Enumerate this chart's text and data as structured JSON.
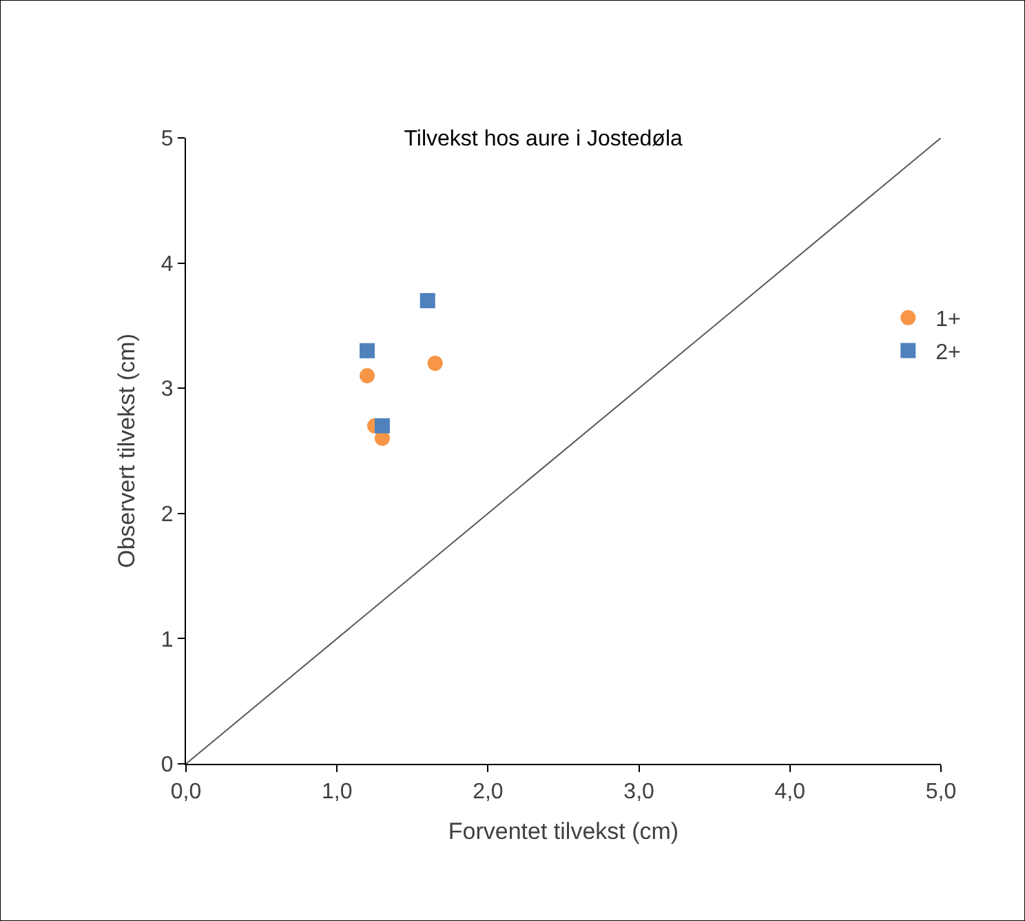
{
  "chart_data": {
    "type": "scatter",
    "title": "Tilvekst hos aure i Jostedøla",
    "xlabel": "Forventet tilvekst (cm)",
    "ylabel": "Observert tilvekst (cm)",
    "xlim": [
      0,
      5
    ],
    "ylim": [
      0,
      5
    ],
    "xticks": [
      {
        "value": 0,
        "label": "0,0"
      },
      {
        "value": 1,
        "label": "1,0"
      },
      {
        "value": 2,
        "label": "2,0"
      },
      {
        "value": 3,
        "label": "3,0"
      },
      {
        "value": 4,
        "label": "4,0"
      },
      {
        "value": 5,
        "label": "5,0"
      }
    ],
    "yticks": [
      0,
      1,
      2,
      3,
      4,
      5
    ],
    "grid": false,
    "legend": "right",
    "series": [
      {
        "name": "1+",
        "color": "#f79646",
        "marker": "circle",
        "x": [
          1.2,
          1.25,
          1.3,
          1.65
        ],
        "values": [
          3.1,
          2.7,
          2.6,
          3.2
        ]
      },
      {
        "name": "2+",
        "color": "#4f81bd",
        "marker": "square",
        "x": [
          1.2,
          1.3,
          1.6
        ],
        "values": [
          3.3,
          2.7,
          3.7
        ]
      },
      {
        "type": "line",
        "color": "#595959",
        "marker": "none",
        "x": [
          0,
          5
        ],
        "values": [
          0,
          5
        ]
      }
    ]
  }
}
